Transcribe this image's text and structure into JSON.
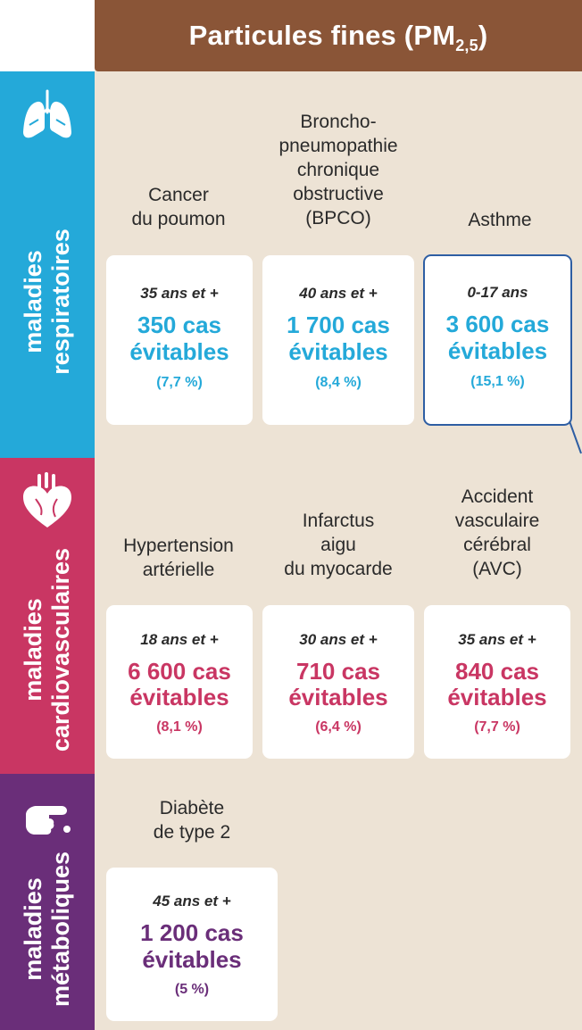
{
  "header": {
    "title_main": "Particules fines (PM",
    "title_sub": "2,5",
    "title_end": ")"
  },
  "colors": {
    "respiratoire": "#24a9d9",
    "cardiovasculaire": "#c93663",
    "metabolique": "#6a2e79",
    "header": "#8a5537",
    "background": "#ede3d5"
  },
  "categories": {
    "respiratoires": {
      "label_line1": "maladies",
      "label_line2": "respiratoires",
      "icon": "lungs-icon",
      "diseases": [
        {
          "name_lines": [
            "Cancer",
            "du poumon"
          ],
          "age": "35 ans et +",
          "count": "350 cas",
          "evitables": "évitables",
          "pct": "(7,7 %)"
        },
        {
          "name_lines": [
            "Broncho-",
            "pneumopathie",
            "chronique",
            "obstructive",
            "(BPCO)"
          ],
          "age": "40 ans et +",
          "count": "1 700 cas",
          "evitables": "évitables",
          "pct": "(8,4 %)"
        },
        {
          "name_lines": [
            "Asthme"
          ],
          "age": "0-17 ans",
          "count": "3 600 cas",
          "evitables": "évitables",
          "pct": "(15,1 %)"
        }
      ]
    },
    "cardiovasculaires": {
      "label_line1": "maladies",
      "label_line2": "cardiovasculaires",
      "icon": "heart-icon",
      "diseases": [
        {
          "name_lines": [
            "Hypertension",
            "artérielle"
          ],
          "age": "18 ans et +",
          "count": "6 600 cas",
          "evitables": "évitables",
          "pct": "(8,1 %)"
        },
        {
          "name_lines": [
            "Infarctus",
            "aigu",
            "du myocarde"
          ],
          "age": "30 ans et +",
          "count": "710 cas",
          "evitables": "évitables",
          "pct": "(6,4 %)"
        },
        {
          "name_lines": [
            "Accident",
            "vasculaire",
            "cérébral",
            "(AVC)"
          ],
          "age": "35 ans et +",
          "count": "840 cas",
          "evitables": "évitables",
          "pct": "(7,7 %)"
        }
      ]
    },
    "metaboliques": {
      "label_line1": "maladies",
      "label_line2": "métaboliques",
      "icon": "hand-icon",
      "diseases": [
        {
          "name_lines": [
            "Diabète",
            "de type 2"
          ],
          "age": "45 ans et +",
          "count": "1 200 cas",
          "evitables": "évitables",
          "pct": "(5 %)"
        }
      ]
    }
  }
}
